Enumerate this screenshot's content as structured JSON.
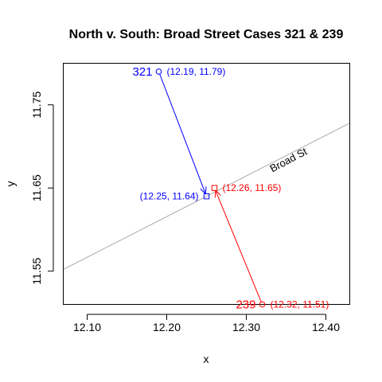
{
  "chart_data": {
    "type": "scatter",
    "title": "North v. South: Broad Street Cases 321 & 239",
    "xlabel": "x",
    "ylabel": "y",
    "xlim": [
      12.07,
      12.43
    ],
    "ylim": [
      11.51,
      11.8
    ],
    "xticks": [
      12.1,
      12.2,
      12.3,
      12.4
    ],
    "xtick_labels": [
      "12.10",
      "12.20",
      "12.30",
      "12.40"
    ],
    "yticks": [
      11.55,
      11.65,
      11.75
    ],
    "ytick_labels": [
      "11.55",
      "11.65",
      "11.75"
    ],
    "grid": false,
    "colors": {
      "north": "#0000ff",
      "south": "#ff0000",
      "street": "#aaaaaa",
      "axis": "#000000"
    },
    "street": {
      "label": "Broad St",
      "x": [
        12.07,
        12.43
      ],
      "y": [
        11.552,
        11.728
      ]
    },
    "street_label_point": {
      "x": 12.355,
      "y": 11.68,
      "angle": 27.8
    },
    "cases": [
      {
        "name": "321",
        "color": "#0000ff",
        "home": {
          "x": 12.19,
          "y": 11.79,
          "label": "(12.19, 11.79)"
        },
        "street": {
          "x": 12.25,
          "y": 11.64,
          "label": "(12.25, 11.64)"
        },
        "label_side": "left"
      },
      {
        "name": "239",
        "color": "#ff0000",
        "home": {
          "x": 12.32,
          "y": 11.51,
          "label": "(12.32, 11.51)"
        },
        "street": {
          "x": 12.26,
          "y": 11.65,
          "label": "(12.26, 11.65)"
        },
        "label_side": "right"
      }
    ]
  }
}
